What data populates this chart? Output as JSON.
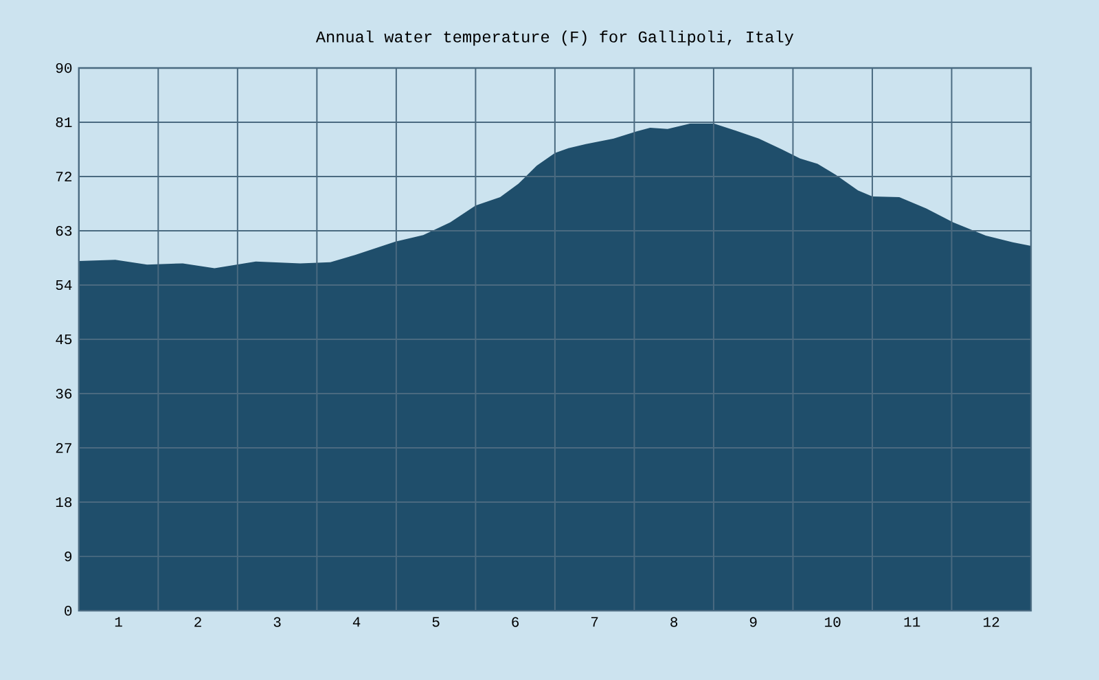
{
  "chart_data": {
    "type": "area",
    "title": "Annual water temperature (F) for Gallipoli, Italy",
    "x": [
      0.5,
      0.96,
      1.36,
      1.81,
      2.21,
      2.73,
      3.29,
      3.67,
      3.98,
      4.49,
      4.84,
      5.18,
      5.5,
      5.81,
      6.04,
      6.27,
      6.5,
      6.67,
      6.89,
      7.24,
      7.53,
      7.7,
      7.92,
      8.21,
      8.5,
      8.78,
      9.07,
      9.36,
      9.59,
      9.81,
      10.04,
      10.32,
      10.5,
      10.84,
      11.18,
      11.52,
      11.93,
      12.27,
      12.5
    ],
    "values": [
      58.0,
      58.2,
      57.4,
      57.6,
      56.8,
      57.9,
      57.6,
      57.8,
      59.0,
      61.2,
      62.3,
      64.4,
      67.2,
      68.6,
      70.8,
      73.8,
      75.9,
      76.7,
      77.4,
      78.3,
      79.5,
      80.1,
      79.9,
      80.8,
      80.8,
      79.6,
      78.3,
      76.5,
      75.0,
      74.1,
      72.3,
      69.7,
      68.7,
      68.6,
      66.7,
      64.4,
      62.2,
      61.1,
      60.5
    ],
    "color": "#1f4e6b",
    "xlim": [
      0.5,
      12.5
    ],
    "xticks": [
      {
        "value": 1,
        "label": "1"
      },
      {
        "value": 1.5,
        "label": null
      },
      {
        "value": 2,
        "label": "2"
      },
      {
        "value": 2.5,
        "label": null
      },
      {
        "value": 3,
        "label": "3"
      },
      {
        "value": 3.5,
        "label": null
      },
      {
        "value": 4,
        "label": "4"
      },
      {
        "value": 4.5,
        "label": null
      },
      {
        "value": 5,
        "label": "5"
      },
      {
        "value": 5.5,
        "label": null
      },
      {
        "value": 6,
        "label": "6"
      },
      {
        "value": 6.5,
        "label": null
      },
      {
        "value": 7,
        "label": "7"
      },
      {
        "value": 7.5,
        "label": null
      },
      {
        "value": 8,
        "label": "8"
      },
      {
        "value": 8.5,
        "label": null
      },
      {
        "value": 9,
        "label": "9"
      },
      {
        "value": 9.5,
        "label": null
      },
      {
        "value": 10,
        "label": "10"
      },
      {
        "value": 10.5,
        "label": null
      },
      {
        "value": 11,
        "label": "11"
      },
      {
        "value": 11.5,
        "label": null
      },
      {
        "value": 12,
        "label": "12"
      }
    ],
    "ylim": [
      0,
      90
    ],
    "yticks": [
      0,
      9,
      18,
      27,
      36,
      45,
      54,
      63,
      72,
      81,
      90
    ],
    "grid": true
  }
}
